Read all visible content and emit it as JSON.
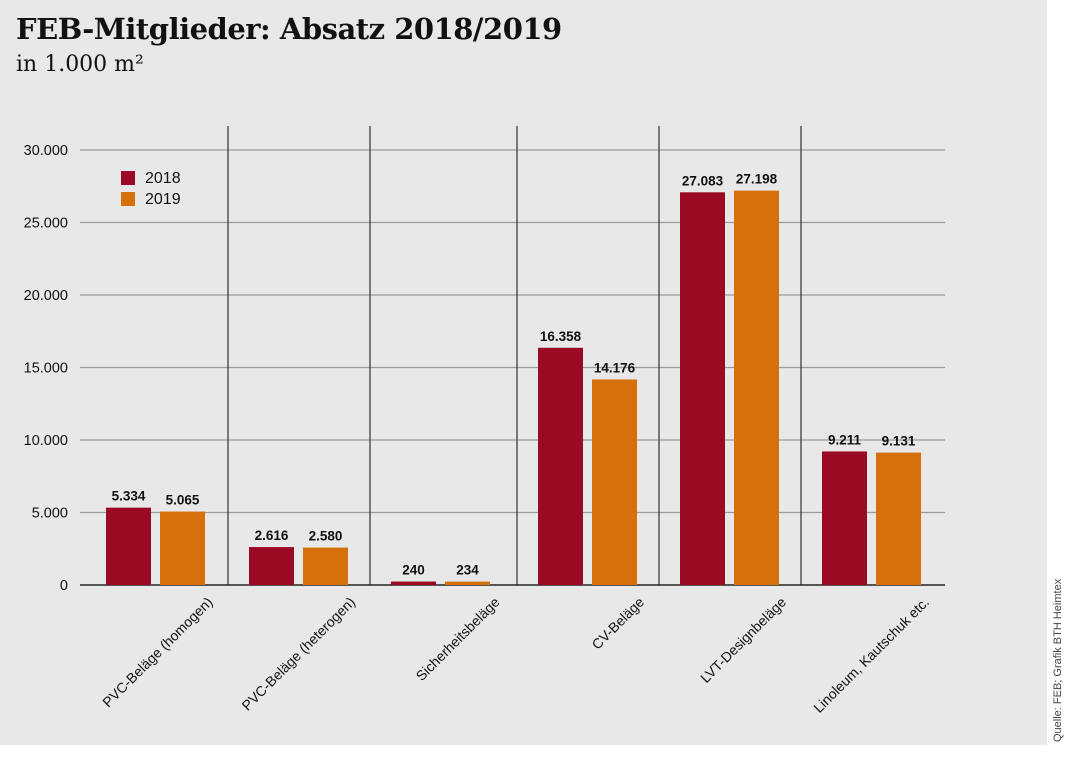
{
  "chart_data": {
    "type": "bar",
    "title": "FEB-Mitglieder: Absatz 2018/2019",
    "subtitle": "in 1.000 m²",
    "source": "Quelle: FEB; Grafik BTH Heimtex",
    "categories": [
      "PVC-Beläge (homogen)",
      "PVC-Beläge (heterogen)",
      "Sicherheitsbeläge",
      "CV-Beläge",
      "LVT-Designbeläge",
      "Linoleum, Kautschuk etc."
    ],
    "series": [
      {
        "name": "2018",
        "color": "#9a0a22",
        "values": [
          5334,
          2616,
          240,
          16358,
          27083,
          9211
        ],
        "labels": [
          "5.334",
          "2.616",
          "240",
          "16.358",
          "27.083",
          "9.211"
        ]
      },
      {
        "name": "2019",
        "color": "#d6700a",
        "values": [
          5065,
          2580,
          234,
          14176,
          27198,
          9131
        ],
        "labels": [
          "5.065",
          "2.580",
          "234",
          "14.176",
          "27.198",
          "9.131"
        ]
      }
    ],
    "ylim": [
      0,
      30000
    ],
    "yticks": [
      0,
      5000,
      10000,
      15000,
      20000,
      25000,
      30000
    ],
    "ytick_labels": [
      "0",
      "5.000",
      "10.000",
      "15.000",
      "20.000",
      "25.000",
      "30.000"
    ],
    "grid": true,
    "legend": "top-left"
  }
}
